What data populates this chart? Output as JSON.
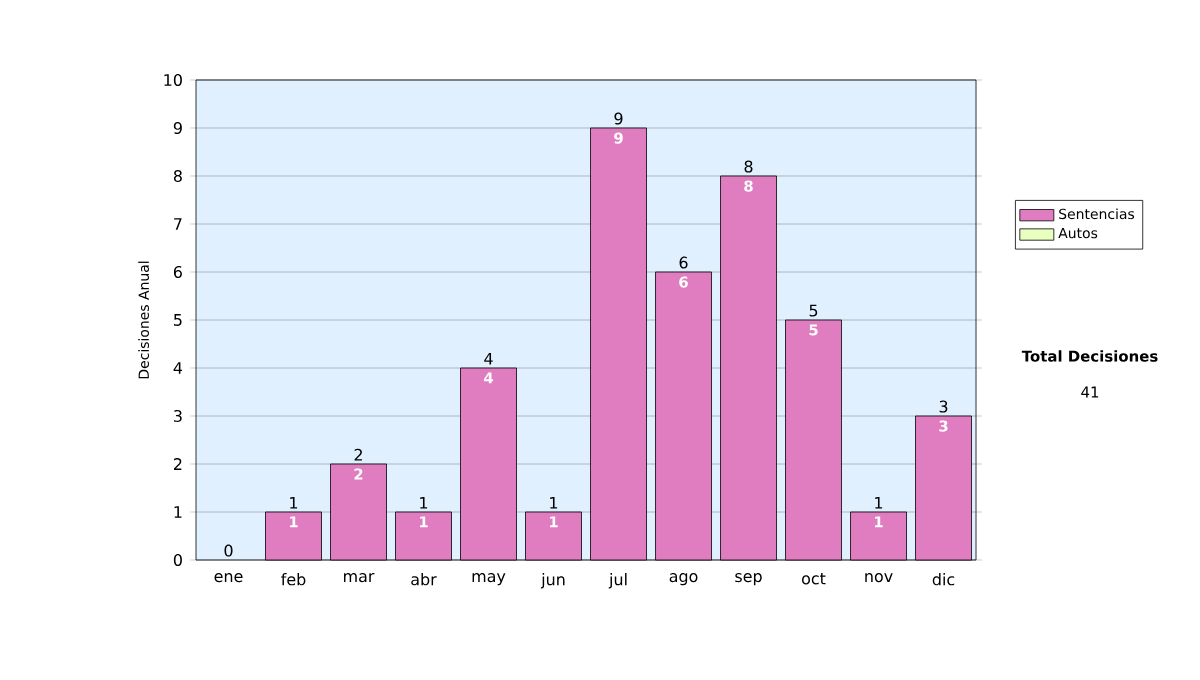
{
  "chart_data": {
    "type": "bar",
    "ylabel": "Decisiones Anual",
    "categories": [
      "ene",
      "feb",
      "mar",
      "abr",
      "may",
      "jun",
      "jul",
      "ago",
      "sep",
      "oct",
      "nov",
      "dic"
    ],
    "series": [
      {
        "name": "Sentencias",
        "color": "#e07cc0",
        "values": [
          0,
          1,
          2,
          1,
          4,
          1,
          9,
          6,
          8,
          5,
          1,
          3
        ],
        "value_labels": [
          null,
          "1",
          "2",
          "1",
          "4",
          "1",
          "9",
          "6",
          "8",
          "5",
          "1",
          "3"
        ]
      },
      {
        "name": "Autos",
        "color": "#e8ffc0",
        "values": [
          0,
          0,
          0,
          0,
          0,
          0,
          0,
          0,
          0,
          0,
          0,
          0
        ]
      }
    ],
    "stacked": true,
    "totals": [
      "0",
      "1",
      "2",
      "1",
      "4",
      "1",
      "9",
      "6",
      "8",
      "5",
      "1",
      "3"
    ],
    "ylim": [
      0,
      10
    ],
    "yticks": [
      0,
      1,
      2,
      3,
      4,
      5,
      6,
      7,
      8,
      9,
      10
    ],
    "grid": "y",
    "legend": "right",
    "annotations": [
      "Total Decisiones",
      "41"
    ]
  }
}
